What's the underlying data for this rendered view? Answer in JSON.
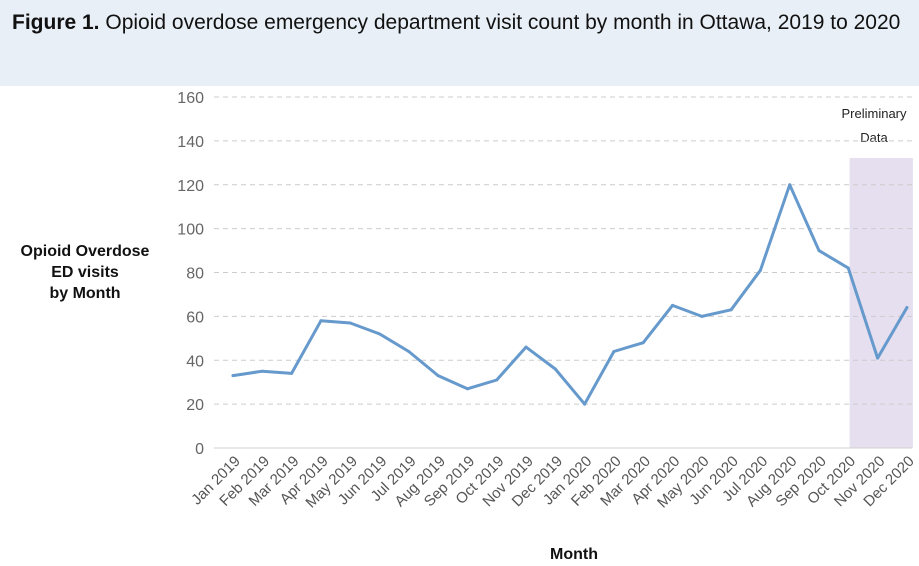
{
  "title_prefix": "Figure 1.",
  "title_text": "Opioid overdose emergency department visit count by month in Ottawa, 2019 to 2020",
  "colors": {
    "line": "#6699cc",
    "shade": "#e6dff0",
    "grid": "#cccccc",
    "header_bg": "#e8eff6"
  },
  "chart_data": {
    "type": "line",
    "title": "Figure 1. Opioid overdose emergency department visit count by month in Ottawa, 2019 to 2020",
    "ylabel_lines": [
      "Opioid Overdose",
      "ED visits",
      "by Month"
    ],
    "xlabel": "Month",
    "ylim": [
      0,
      160
    ],
    "yticks": [
      0,
      20,
      40,
      60,
      80,
      100,
      120,
      140,
      160
    ],
    "grid": "horizontal dashed",
    "categories": [
      "Jan 2019",
      "Feb 2019",
      "Mar 2019",
      "Apr 2019",
      "May 2019",
      "Jun 2019",
      "Jul 2019",
      "Aug 2019",
      "Sep 2019",
      "Oct 2019",
      "Nov 2019",
      "Dec 2019",
      "Jan 2020",
      "Feb 2020",
      "Mar 2020",
      "Apr 2020",
      "May 2020",
      "Jun 2020",
      "Jul 2020",
      "Aug 2020",
      "Sep 2020",
      "Oct 2020",
      "Nov 2020",
      "Dec 2020"
    ],
    "values": [
      33,
      35,
      34,
      58,
      57,
      52,
      44,
      33,
      27,
      31,
      46,
      36,
      20,
      44,
      48,
      65,
      60,
      63,
      81,
      120,
      90,
      82,
      41,
      64
    ],
    "preliminary": {
      "label_lines": [
        "Preliminary",
        "Data"
      ],
      "from_category": "Nov 2020",
      "to_category": "Dec 2020"
    }
  }
}
